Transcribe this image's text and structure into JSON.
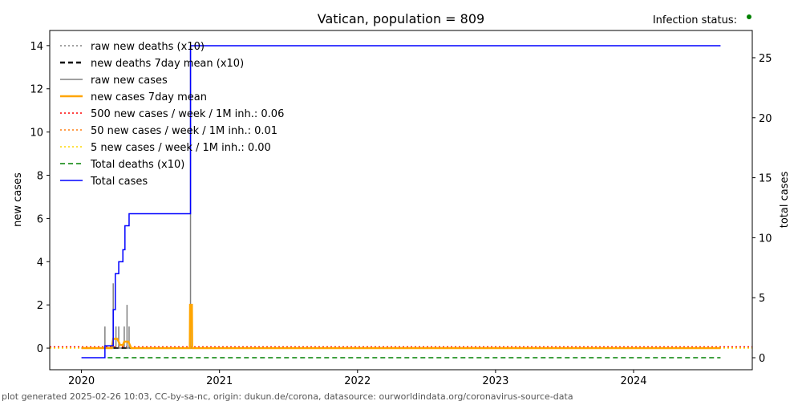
{
  "chart_data": {
    "type": "line",
    "title": "Vatican, population = 809",
    "status_label": "Infection status:",
    "status_color": "#008000",
    "xlabel": "",
    "ylabel": "new cases",
    "ylabel_right": "total cases",
    "xlim": [
      2019.77,
      2024.86
    ],
    "ylim": [
      -1.0,
      14.7
    ],
    "ylim_right": [
      -1.0,
      27.27
    ],
    "x_ticks": [
      2020,
      2021,
      2022,
      2023,
      2024
    ],
    "x_tick_labels": [
      "2020",
      "2021",
      "2022",
      "2023",
      "2024"
    ],
    "y_ticks": [
      0,
      2,
      4,
      6,
      8,
      10,
      12,
      14
    ],
    "y_tick_labels": [
      "0",
      "2",
      "4",
      "6",
      "8",
      "10",
      "12",
      "14"
    ],
    "y_ticks_right": [
      0,
      5,
      10,
      15,
      20,
      25
    ],
    "y_tick_labels_right": [
      "0",
      "5",
      "10",
      "15",
      "20",
      "25"
    ],
    "legend_position": "top-left",
    "series": [
      {
        "name": "raw new deaths (x10)",
        "color": "#808080",
        "style": "dotted",
        "axis": "left",
        "kind": "step",
        "points": [
          [
            2020.0,
            0
          ],
          [
            2024.63,
            0
          ]
        ]
      },
      {
        "name": "new deaths 7day mean (x10)",
        "color": "#000000",
        "style": "dashed",
        "axis": "left",
        "kind": "step",
        "points": [
          [
            2020.0,
            0
          ],
          [
            2024.63,
            0
          ]
        ]
      },
      {
        "name": "raw new cases",
        "color": "#808080",
        "style": "solid",
        "axis": "left",
        "kind": "spikes",
        "points": [
          [
            2020.17,
            1
          ],
          [
            2020.23,
            3
          ],
          [
            2020.25,
            1
          ],
          [
            2020.27,
            1
          ],
          [
            2020.31,
            1
          ],
          [
            2020.33,
            2
          ],
          [
            2020.345,
            1
          ],
          [
            2020.79,
            14
          ]
        ],
        "span": [
          2020.0,
          2024.63
        ]
      },
      {
        "name": "new cases 7day mean",
        "color": "#ffa500",
        "style": "solid",
        "axis": "left",
        "kind": "line",
        "points": [
          [
            2020.0,
            0
          ],
          [
            2020.22,
            0
          ],
          [
            2020.23,
            0.43
          ],
          [
            2020.26,
            0.43
          ],
          [
            2020.28,
            0.14
          ],
          [
            2020.3,
            0.14
          ],
          [
            2020.31,
            0.3
          ],
          [
            2020.34,
            0.3
          ],
          [
            2020.36,
            0
          ],
          [
            2020.785,
            0
          ],
          [
            2020.787,
            2
          ],
          [
            2020.8,
            2
          ],
          [
            2020.802,
            0
          ],
          [
            2024.63,
            0
          ]
        ]
      },
      {
        "name": "500 new cases / week / 1M inh.: 0.06",
        "color": "#ff0000",
        "style": "dotted",
        "axis": "left",
        "kind": "hline",
        "value": 0.06
      },
      {
        "name": "50 new cases / week / 1M inh.: 0.01",
        "color": "#ff7f0e",
        "style": "dotted",
        "axis": "left",
        "kind": "hline",
        "value": 0.01
      },
      {
        "name": "5 new cases / week / 1M inh.: 0.00",
        "color": "#ffd700",
        "style": "dotted",
        "axis": "left",
        "kind": "hline",
        "value": 0.0
      },
      {
        "name": "Total deaths (x10)",
        "color": "#008000",
        "style": "dashed",
        "axis": "right",
        "kind": "step",
        "points": [
          [
            2020.19,
            0
          ],
          [
            2024.63,
            0
          ]
        ]
      },
      {
        "name": "Total cases",
        "color": "#0000ff",
        "style": "solid",
        "axis": "right",
        "kind": "step",
        "points": [
          [
            2020.0,
            0
          ],
          [
            2020.17,
            1
          ],
          [
            2020.23,
            4
          ],
          [
            2020.245,
            7
          ],
          [
            2020.27,
            8
          ],
          [
            2020.3,
            9
          ],
          [
            2020.315,
            11
          ],
          [
            2020.345,
            12
          ],
          [
            2020.79,
            26
          ],
          [
            2024.63,
            26
          ]
        ]
      }
    ]
  },
  "footer": "plot generated 2025-02-26 10:03, CC-by-sa-nc, origin: dukun.de/corona, datasource: ourworldindata.org/coronavirus-source-data"
}
